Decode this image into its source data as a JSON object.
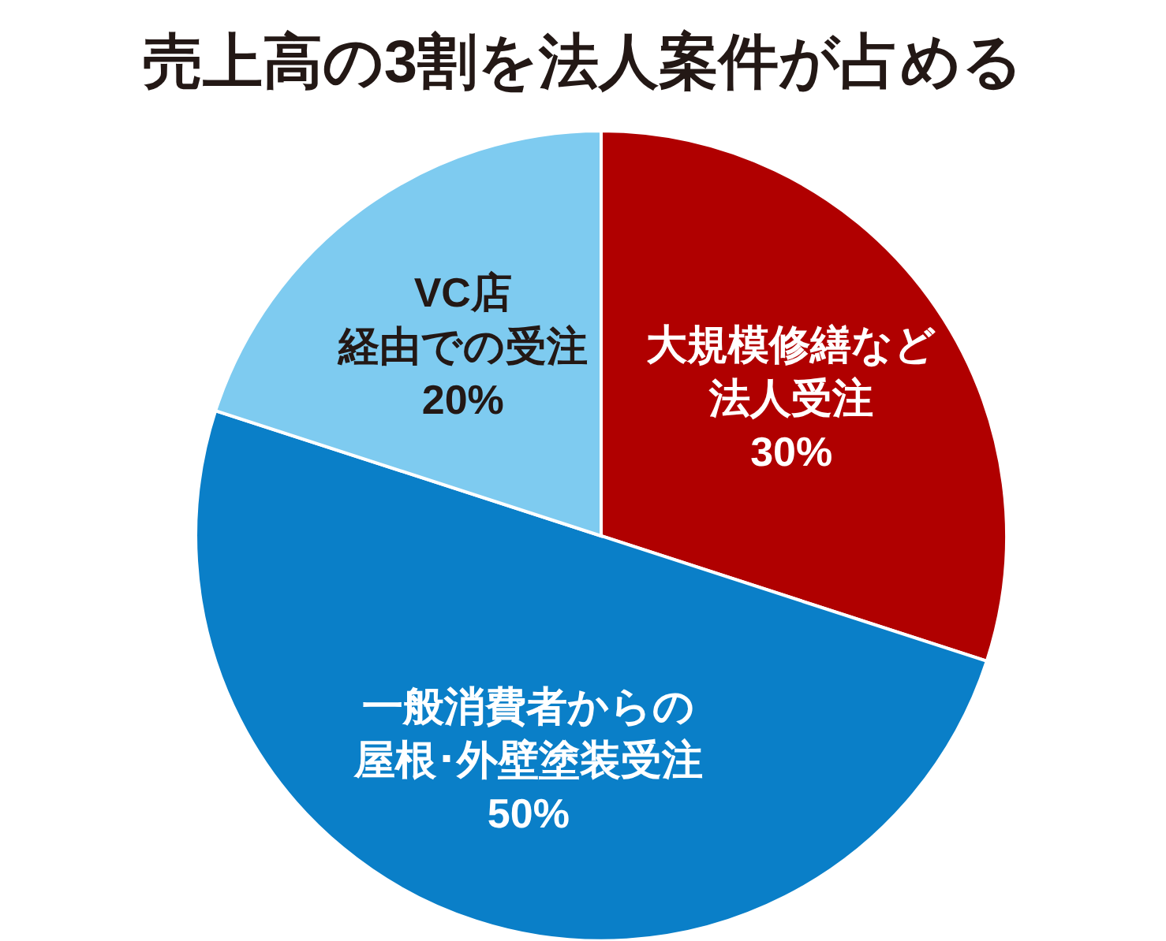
{
  "chart_data": {
    "type": "pie",
    "title": "売上高の3割を法人案件が占める",
    "categories": [
      "大規模修繕など法人受注",
      "一般消費者からの屋根･外壁塗装受注",
      "VC店経由での受注"
    ],
    "values": [
      30,
      50,
      20
    ],
    "value_labels": [
      "30%",
      "50%",
      "20%"
    ],
    "colors": [
      "#b00000",
      "#0a7fc8",
      "#7ecbf0"
    ]
  }
}
